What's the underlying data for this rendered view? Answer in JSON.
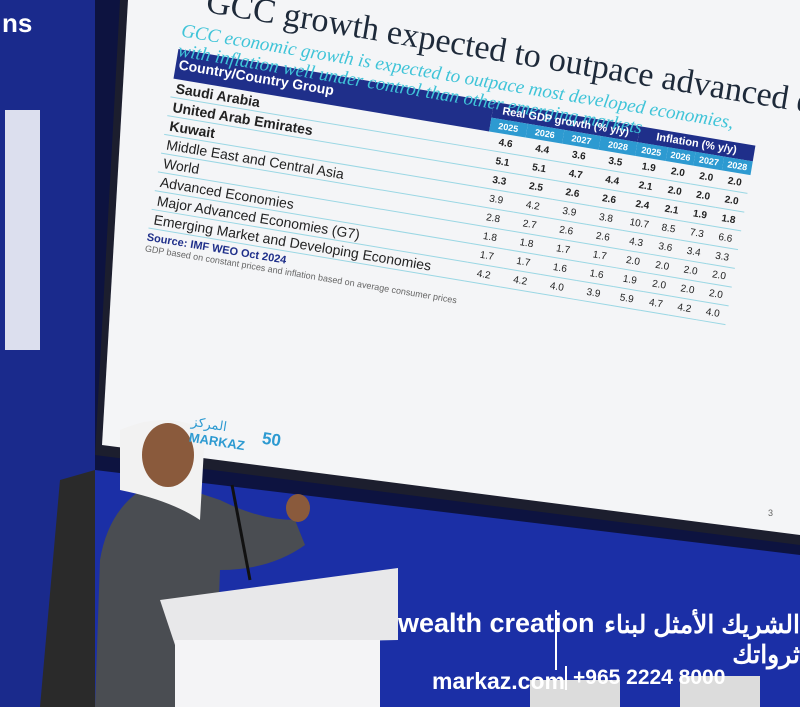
{
  "edge_text": "ns",
  "slide": {
    "title": "GCC growth expected to outpace advanced economies",
    "subtitle": "GCC economic growth is expected to outpace most developed economies, with inflation well under control than other emerging markets",
    "table": {
      "header_country": "Country/Country Group",
      "header_gdp": "Real GDP growth (% y/y)",
      "header_inflation": "Inflation (% y/y)",
      "years_gdp": [
        "2025",
        "2026",
        "2027",
        "2028"
      ],
      "years_inflation": [
        "2025",
        "2026",
        "2027",
        "2028"
      ],
      "rows": [
        {
          "country": "Saudi Arabia",
          "gdp": [
            "4.6",
            "4.4",
            "3.6",
            "3.5"
          ],
          "inflation": [
            "1.9",
            "2.0",
            "2.0",
            "2.0"
          ]
        },
        {
          "country": "United Arab Emirates",
          "gdp": [
            "5.1",
            "5.1",
            "4.7",
            "4.4"
          ],
          "inflation": [
            "2.1",
            "2.0",
            "2.0",
            "2.0"
          ]
        },
        {
          "country": "Kuwait",
          "gdp": [
            "3.3",
            "2.5",
            "2.6",
            "2.6"
          ],
          "inflation": [
            "2.4",
            "2.1",
            "1.9",
            "1.8"
          ]
        },
        {
          "country": "Middle East and Central Asia",
          "gdp": [
            "3.9",
            "4.2",
            "3.9",
            "3.8"
          ],
          "inflation": [
            "10.7",
            "8.5",
            "7.3",
            "6.6"
          ]
        },
        {
          "country": "World",
          "gdp": [
            "2.8",
            "2.7",
            "2.6",
            "2.6"
          ],
          "inflation": [
            "4.3",
            "3.6",
            "3.4",
            "3.3"
          ]
        },
        {
          "country": "Advanced Economies",
          "gdp": [
            "1.8",
            "1.8",
            "1.7",
            "1.7"
          ],
          "inflation": [
            "2.0",
            "2.0",
            "2.0",
            "2.0"
          ]
        },
        {
          "country": "Major Advanced Economies (G7)",
          "gdp": [
            "1.7",
            "1.7",
            "1.6",
            "1.6"
          ],
          "inflation": [
            "1.9",
            "2.0",
            "2.0",
            "2.0"
          ]
        },
        {
          "country": "Emerging Market and Developing Economies",
          "gdp": [
            "4.2",
            "4.2",
            "4.0",
            "3.9"
          ],
          "inflation": [
            "5.9",
            "4.7",
            "4.2",
            "4.0"
          ]
        }
      ]
    },
    "source": "Source: IMF WEO Oct 2024",
    "note": "GDP based on constant prices and inflation based on average consumer prices",
    "logo_text": "MARKAZ",
    "logo_arabic": "المركز",
    "anniversary": "50",
    "page_number": "3"
  },
  "banner": {
    "tagline": "wealth creation",
    "tagline_arabic": "الشريك الأمثل لبناء ثرواتك",
    "website": "markaz.com",
    "phone": "+965 2224 8000"
  }
}
